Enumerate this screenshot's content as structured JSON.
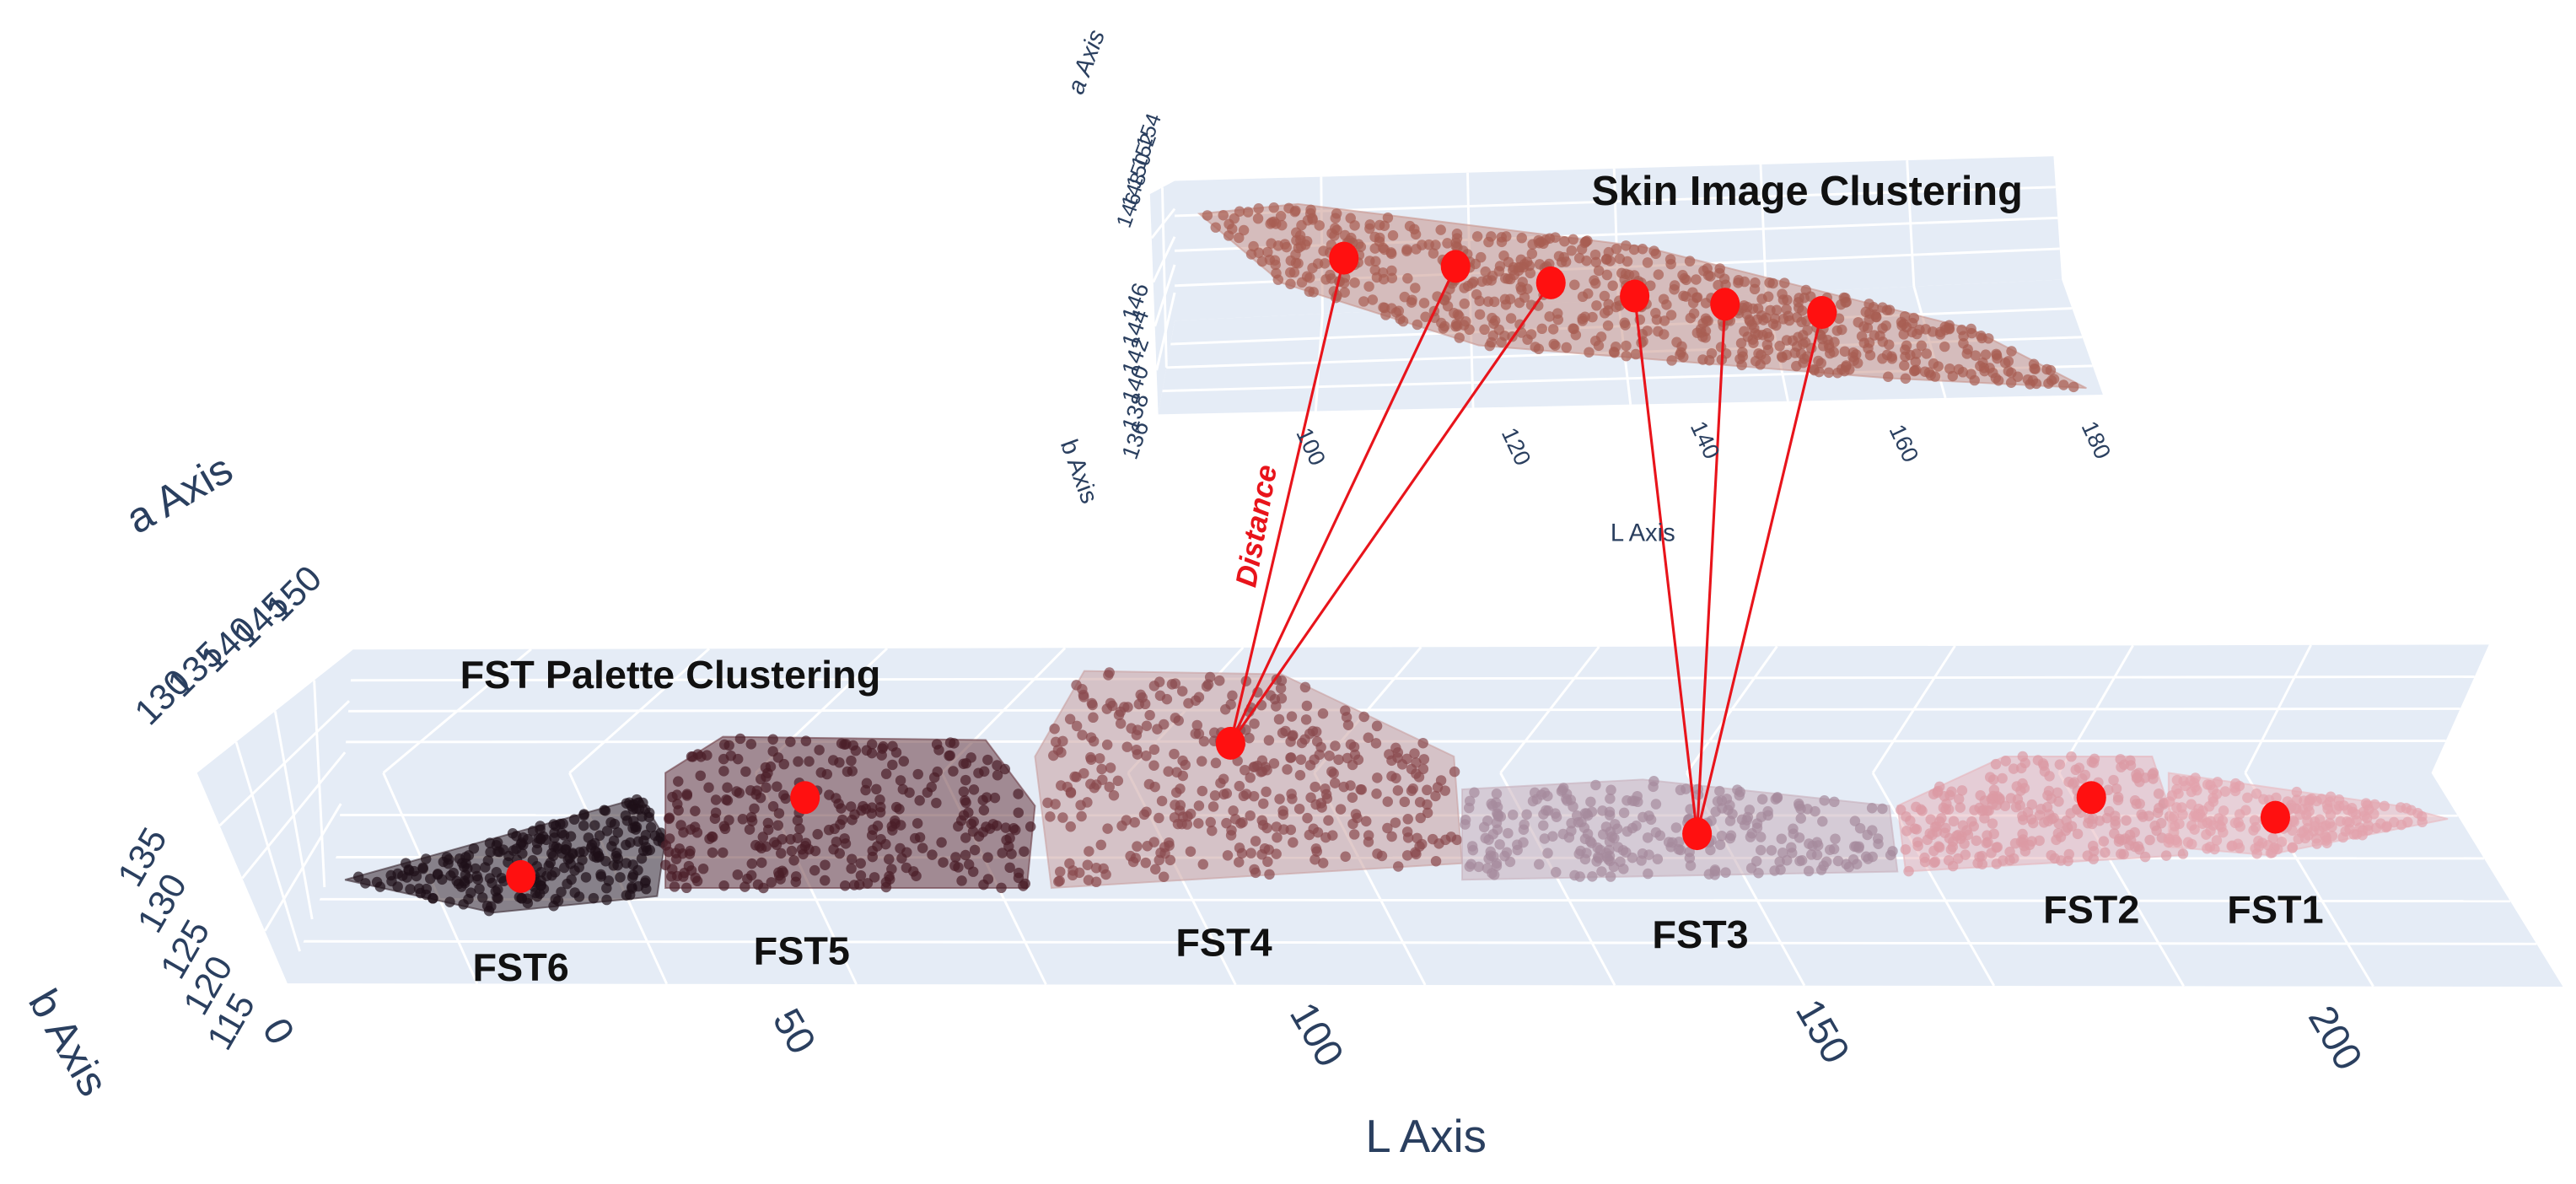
{
  "skin_plot": {
    "title": "Skin Image Clustering",
    "a_axis": {
      "title": "a Axis",
      "ticks": [
        146,
        148,
        150,
        152,
        154
      ]
    },
    "b_axis": {
      "title": "b Axis",
      "ticks": [
        136,
        138,
        140,
        142,
        144,
        146
      ]
    },
    "l_axis": {
      "title": "L Axis",
      "ticks": [
        100,
        120,
        140,
        160,
        180
      ]
    }
  },
  "palette_plot": {
    "title": "FST Palette Clustering",
    "a_axis": {
      "title": "a Axis",
      "ticks": [
        130,
        135,
        140,
        145,
        150
      ]
    },
    "b_axis": {
      "title": "b Axis",
      "ticks": [
        115,
        120,
        125,
        130,
        135
      ]
    },
    "l_axis": {
      "title": "L Axis",
      "ticks": [
        0,
        50,
        100,
        150,
        200
      ]
    },
    "clusters": [
      {
        "label": "FST6"
      },
      {
        "label": "FST5"
      },
      {
        "label": "FST4"
      },
      {
        "label": "FST3"
      },
      {
        "label": "FST2"
      },
      {
        "label": "FST1"
      }
    ]
  },
  "annotation": "Distance"
}
